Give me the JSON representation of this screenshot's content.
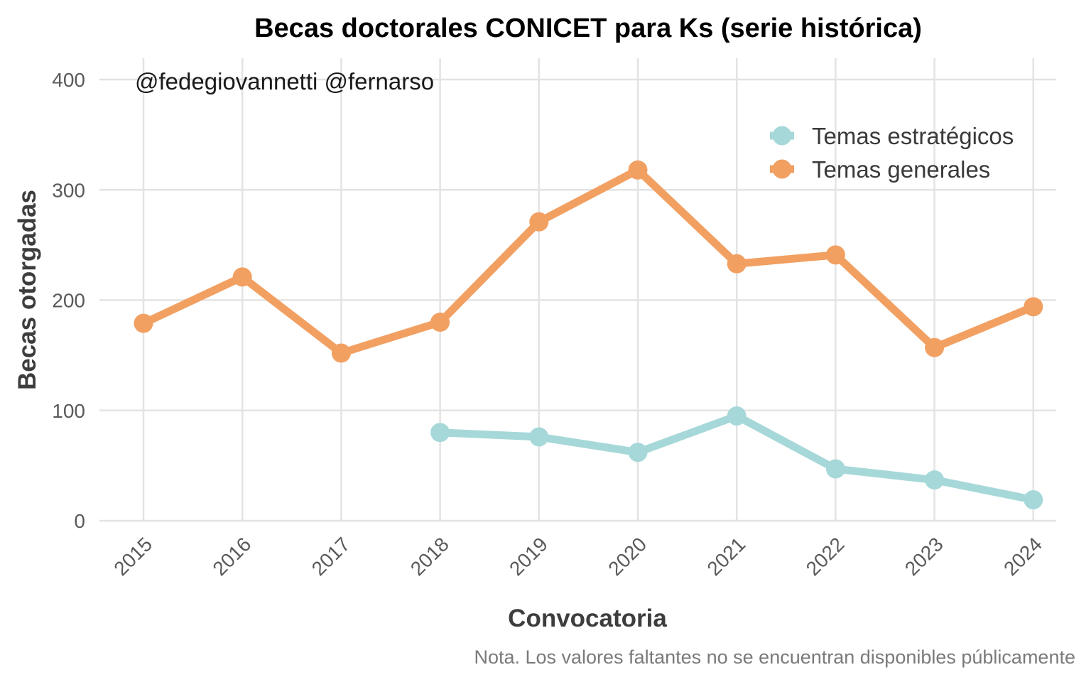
{
  "chart_data": {
    "type": "line",
    "title": "Becas doctorales CONICET para Ks (serie histórica)",
    "xlabel": "Convocatoria",
    "ylabel": "Becas otorgadas",
    "annotation": "@fedegiovannetti @fernarso",
    "caption": "Nota. Los valores faltantes no se encuentran disponibles públicamente",
    "categories": [
      "2015",
      "2016",
      "2017",
      "2018",
      "2019",
      "2020",
      "2021",
      "2022",
      "2023",
      "2024"
    ],
    "ylim": [
      0,
      400
    ],
    "yticks": [
      0,
      100,
      200,
      300,
      400
    ],
    "grid": true,
    "legend_position": "top-right",
    "series": [
      {
        "name": "Temas estratégicos",
        "color": "#a7d8d9",
        "values": [
          null,
          null,
          null,
          80,
          76,
          62,
          95,
          47,
          37,
          19
        ]
      },
      {
        "name": "Temas generales",
        "color": "#f2a062",
        "values": [
          179,
          221,
          152,
          180,
          271,
          318,
          233,
          241,
          157,
          194
        ]
      }
    ]
  }
}
